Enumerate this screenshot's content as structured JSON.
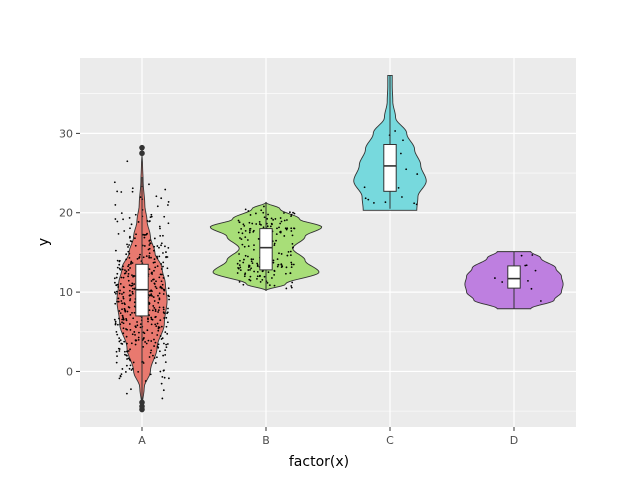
{
  "chart_data": {
    "type": "violin",
    "title": "",
    "xlabel": "factor(x)",
    "ylabel": "y",
    "categories": [
      "A",
      "B",
      "C",
      "D"
    ],
    "colors": [
      "#E9796F",
      "#A8DE78",
      "#77D9DD",
      "#BE7FE0"
    ],
    "ylim": [
      -7,
      39.5
    ],
    "yticks": [
      0,
      10,
      20,
      30
    ],
    "grid": true,
    "legend": "none",
    "violins": [
      {
        "category": "A",
        "profile": [
          [
            -4.5,
            0.0
          ],
          [
            -2,
            0.04
          ],
          [
            0,
            0.15
          ],
          [
            3,
            0.27
          ],
          [
            6,
            0.4
          ],
          [
            9,
            0.45
          ],
          [
            11,
            0.42
          ],
          [
            13,
            0.36
          ],
          [
            15,
            0.23
          ],
          [
            17,
            0.15
          ],
          [
            19,
            0.09
          ],
          [
            21,
            0.05
          ],
          [
            24,
            0.02
          ],
          [
            26,
            0.01
          ],
          [
            27.5,
            0.0
          ]
        ],
        "box": {
          "low": -4,
          "q1": 7,
          "median": 10.3,
          "q3": 13.5,
          "high": 24.5
        },
        "outliers": [
          -4.8,
          -4.4,
          -3.9,
          27.5,
          28.2
        ]
      },
      {
        "category": "B",
        "profile": [
          [
            10.2,
            0.0
          ],
          [
            11,
            0.35
          ],
          [
            12.5,
            0.95
          ],
          [
            14,
            0.7
          ],
          [
            15.5,
            0.48
          ],
          [
            17,
            0.7
          ],
          [
            18.2,
            1.0
          ],
          [
            19.2,
            0.6
          ],
          [
            20.5,
            0.25
          ],
          [
            21.3,
            0.0
          ]
        ],
        "box": {
          "low": 10.2,
          "q1": 12.8,
          "median": 15.6,
          "q3": 18.0,
          "high": 21.3
        },
        "outliers": []
      },
      {
        "category": "C",
        "profile": [
          [
            20.3,
            0.48
          ],
          [
            22,
            0.5
          ],
          [
            24,
            0.65
          ],
          [
            26,
            0.55
          ],
          [
            28,
            0.44
          ],
          [
            30,
            0.3
          ],
          [
            32,
            0.1
          ],
          [
            34,
            0.05
          ],
          [
            36,
            0.04
          ],
          [
            37.3,
            0.04
          ]
        ],
        "box": {
          "low": 20.5,
          "q1": 22.7,
          "median": 25.9,
          "q3": 28.6,
          "high": 37.3
        },
        "outliers": []
      },
      {
        "category": "D",
        "profile": [
          [
            7.9,
            0.3
          ],
          [
            9,
            0.72
          ],
          [
            10,
            0.85
          ],
          [
            11,
            0.88
          ],
          [
            12,
            0.85
          ],
          [
            13,
            0.75
          ],
          [
            14.3,
            0.48
          ],
          [
            15.1,
            0.3
          ]
        ],
        "box": {
          "low": 7.9,
          "q1": 10.5,
          "median": 11.7,
          "q3": 13.3,
          "high": 15.1
        },
        "outliers": []
      }
    ],
    "jitter": [
      {
        "category": "A",
        "n": 480,
        "spread": 0.22
      },
      {
        "category": "B",
        "n": 200,
        "spread": 0.23
      },
      {
        "category": "C",
        "n": 18,
        "spread": 0.22
      },
      {
        "category": "D",
        "n": 10,
        "spread": 0.22
      }
    ]
  }
}
